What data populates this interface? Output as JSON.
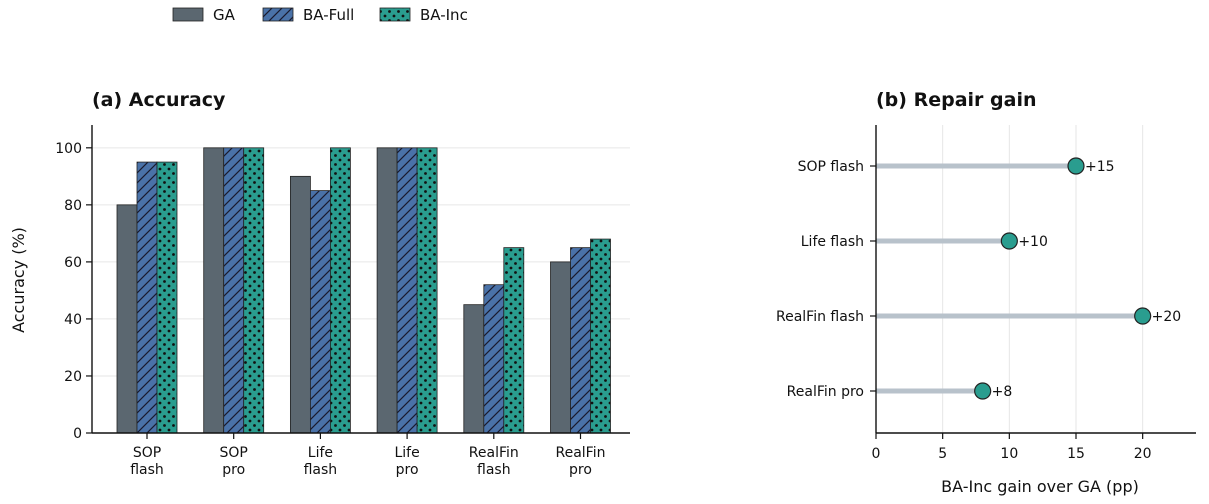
{
  "legend": {
    "items": [
      {
        "label": "GA",
        "color": "#5b6770",
        "pattern": "none"
      },
      {
        "label": "BA-Full",
        "color": "#4a72a8",
        "pattern": "hatch"
      },
      {
        "label": "BA-Inc",
        "color": "#2a9d8f",
        "pattern": "dots"
      }
    ],
    "placement": "top-left"
  },
  "chart_data": [
    {
      "type": "bar",
      "title": "(a) Accuracy",
      "ylabel": "Accuracy (%)",
      "xlabel": "",
      "categories": [
        "SOP\nflash",
        "SOP\npro",
        "Life\nflash",
        "Life\npro",
        "RealFin\nflash",
        "RealFin\npro"
      ],
      "series": [
        {
          "name": "GA",
          "values": [
            80,
            100,
            90,
            100,
            45,
            60
          ],
          "color": "#5b6770"
        },
        {
          "name": "BA-Full",
          "values": [
            95,
            100,
            85,
            100,
            52,
            65
          ],
          "color": "#4a72a8"
        },
        {
          "name": "BA-Inc",
          "values": [
            95,
            100,
            100,
            100,
            65,
            68
          ],
          "color": "#2a9d8f"
        }
      ],
      "ylim": [
        0,
        108
      ],
      "yticks": [
        0,
        20,
        40,
        60,
        80,
        100
      ],
      "grid": "horizontal"
    },
    {
      "type": "lollipop",
      "title": "(b) Repair gain",
      "xlabel": "BA-Inc gain over GA (pp)",
      "ylabel": "",
      "categories": [
        "SOP flash",
        "Life flash",
        "RealFin flash",
        "RealFin pro"
      ],
      "values": [
        15,
        10,
        20,
        8
      ],
      "labels": [
        "+15",
        "+10",
        "+20",
        "+8"
      ],
      "xlim": [
        0,
        24
      ],
      "xticks": [
        0,
        5,
        10,
        15,
        20
      ],
      "grid": "vertical",
      "marker_color": "#2a9d8f",
      "stem_color": "#b8c2cb"
    }
  ]
}
